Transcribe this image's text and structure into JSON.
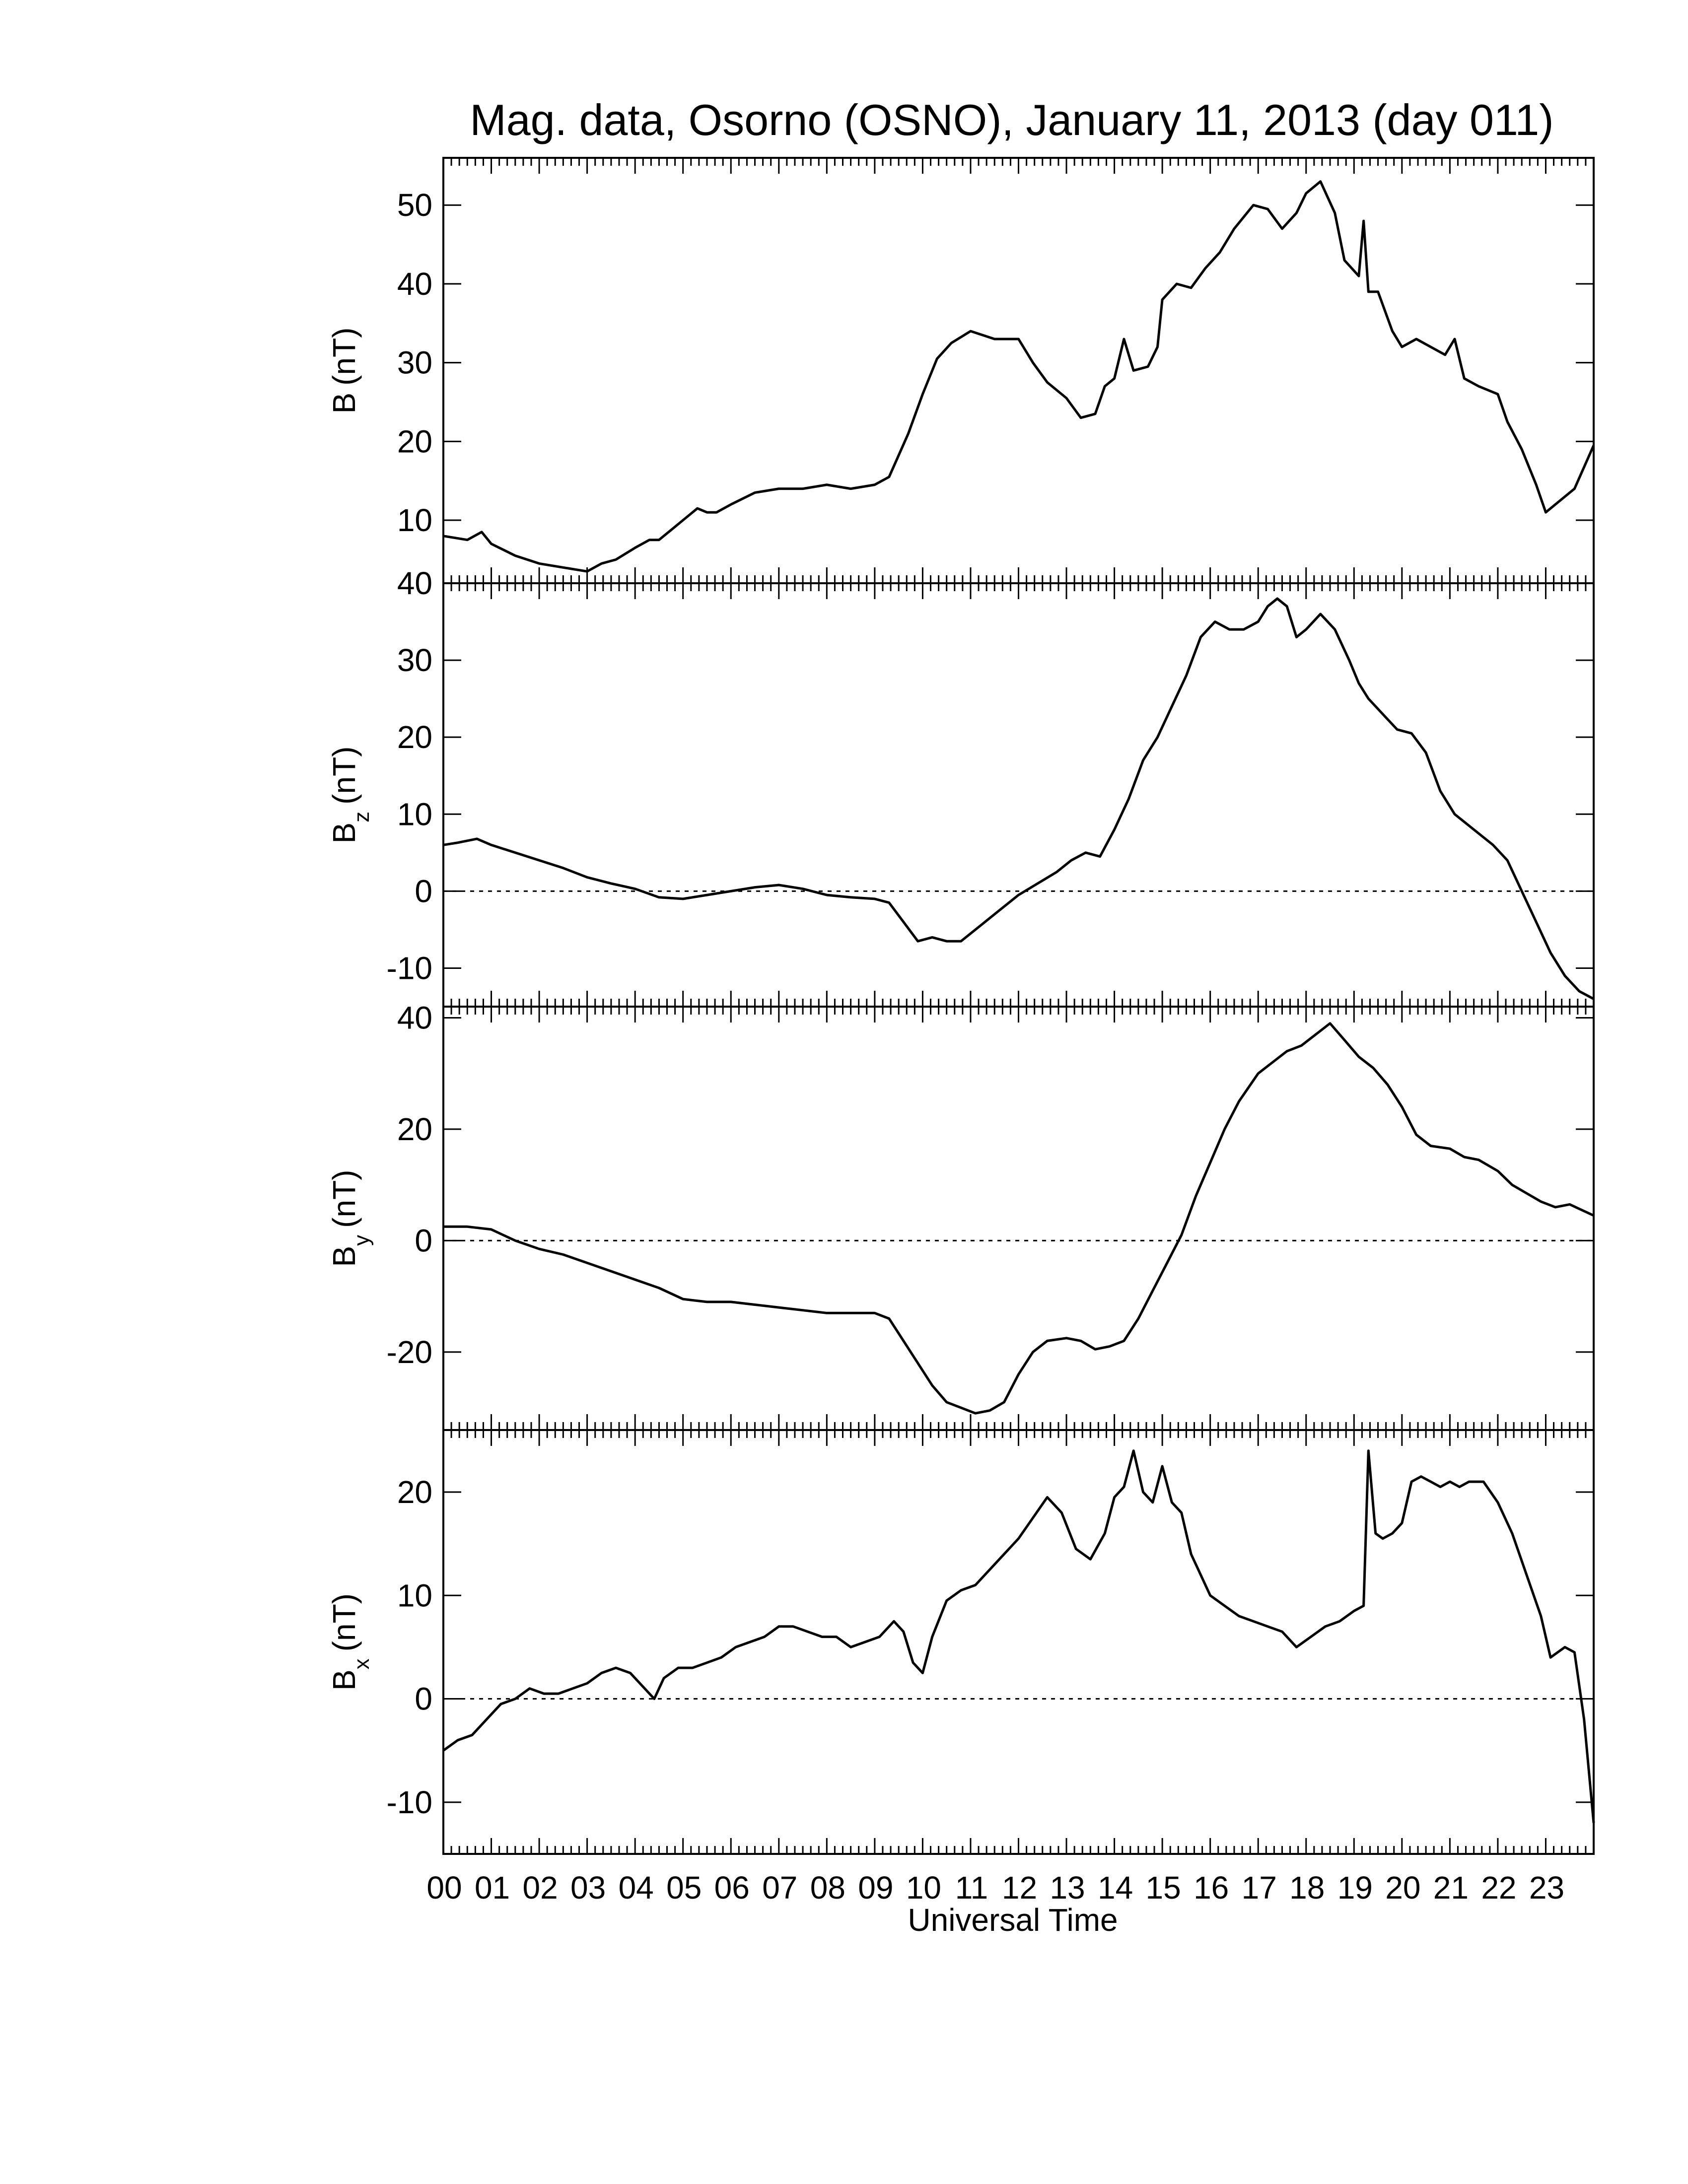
{
  "figure": {
    "title": "Mag. data, Osorno (OSNO), January 11, 2013 (day 011)",
    "xlabel": "Universal Time"
  },
  "colors": {
    "line": "#000000",
    "background": "#ffffff"
  },
  "chart_data": [
    {
      "type": "line",
      "label_main": "B",
      "label_sub": "",
      "label_unit": "(nT)",
      "ylim": [
        2,
        56
      ],
      "yticks": [
        10,
        20,
        30,
        40,
        50
      ],
      "ytick_labels": [
        "10",
        "20",
        "30",
        "40",
        "50"
      ],
      "zero_line": false,
      "xlim": [
        0,
        24
      ],
      "xticks": [
        0,
        1,
        2,
        3,
        4,
        5,
        6,
        7,
        8,
        9,
        10,
        11,
        12,
        13,
        14,
        15,
        16,
        17,
        18,
        19,
        20,
        21,
        22,
        23
      ],
      "xtick_labels": [
        "00",
        "01",
        "02",
        "03",
        "04",
        "05",
        "06",
        "07",
        "08",
        "09",
        "10",
        "11",
        "12",
        "13",
        "14",
        "15",
        "16",
        "17",
        "18",
        "19",
        "20",
        "21",
        "22",
        "23"
      ],
      "series": [
        {
          "x": [
            0,
            0.5,
            0.8,
            1,
            1.5,
            2,
            2.5,
            3,
            3.3,
            3.6,
            4,
            4.3,
            4.5,
            4.8,
            5,
            5.3,
            5.5,
            5.7,
            6,
            6.5,
            7,
            7.5,
            8,
            8.5,
            9,
            9.3,
            9.7,
            10,
            10.3,
            10.6,
            11,
            11.5,
            12,
            12.3,
            12.6,
            13,
            13.3,
            13.6,
            13.8,
            14,
            14.2,
            14.4,
            14.7,
            14.9,
            15,
            15.3,
            15.6,
            15.9,
            16.2,
            16.5,
            16.9,
            17.2,
            17.5,
            17.8,
            18,
            18.3,
            18.6,
            18.8,
            19.1,
            19.2,
            19.3,
            19.5,
            19.8,
            20,
            20.3,
            20.6,
            20.9,
            21.1,
            21.3,
            21.6,
            22,
            22.2,
            22.5,
            22.8,
            23,
            23.3,
            23.6,
            24
          ],
          "y": [
            8,
            7.5,
            8.5,
            7,
            5.5,
            4.5,
            4,
            3.5,
            4.5,
            5,
            6.5,
            7.5,
            7.5,
            9,
            10,
            11.5,
            11,
            11,
            12,
            13.5,
            14,
            14,
            14.5,
            14,
            14.5,
            15.5,
            21,
            26,
            30.5,
            32.5,
            34,
            33,
            33,
            30,
            27.5,
            25.5,
            23,
            23.5,
            27,
            28,
            33,
            29,
            29.5,
            32,
            38,
            40,
            39.5,
            42,
            44,
            47,
            50,
            49.5,
            47,
            49,
            51.5,
            53,
            49,
            43,
            41,
            48,
            39,
            39,
            34,
            32,
            33,
            32,
            31,
            33,
            28,
            27,
            26,
            22.5,
            19,
            14.5,
            11,
            12.5,
            14,
            19.5
          ]
        }
      ]
    },
    {
      "type": "line",
      "label_main": "B",
      "label_sub": "z",
      "label_unit": "(nT)",
      "ylim": [
        -15,
        40
      ],
      "yticks": [
        -10,
        0,
        10,
        20,
        30,
        40
      ],
      "ytick_labels": [
        "-10",
        "0",
        "10",
        "20",
        "30",
        "40"
      ],
      "zero_line": true,
      "xlim": [
        0,
        24
      ],
      "xticks": [
        0,
        1,
        2,
        3,
        4,
        5,
        6,
        7,
        8,
        9,
        10,
        11,
        12,
        13,
        14,
        15,
        16,
        17,
        18,
        19,
        20,
        21,
        22,
        23
      ],
      "xtick_labels": [
        "00",
        "01",
        "02",
        "03",
        "04",
        "05",
        "06",
        "07",
        "08",
        "09",
        "10",
        "11",
        "12",
        "13",
        "14",
        "15",
        "16",
        "17",
        "18",
        "19",
        "20",
        "21",
        "22",
        "23"
      ],
      "series": [
        {
          "x": [
            0,
            0.3,
            0.7,
            1,
            1.5,
            2,
            2.5,
            3,
            3.5,
            4,
            4.5,
            5,
            5.5,
            6,
            6.5,
            7,
            7.5,
            8,
            8.5,
            9,
            9.3,
            9.6,
            9.9,
            10.2,
            10.5,
            10.8,
            11.2,
            11.6,
            12,
            12.4,
            12.8,
            13.1,
            13.4,
            13.7,
            14,
            14.3,
            14.6,
            14.9,
            15.2,
            15.5,
            15.8,
            16.1,
            16.4,
            16.7,
            17,
            17.2,
            17.4,
            17.6,
            17.8,
            18,
            18.3,
            18.6,
            18.9,
            19.1,
            19.3,
            19.6,
            19.9,
            20.2,
            20.5,
            20.8,
            21.1,
            21.5,
            21.9,
            22.2,
            22.5,
            22.8,
            23.1,
            23.4,
            23.7,
            24
          ],
          "y": [
            6,
            6.3,
            6.8,
            6,
            5,
            4,
            3,
            1.8,
            1,
            0.3,
            -0.8,
            -1,
            -0.5,
            0,
            0.5,
            0.8,
            0.3,
            -0.5,
            -0.8,
            -1,
            -1.5,
            -4,
            -6.5,
            -6,
            -6.5,
            -6.5,
            -4.5,
            -2.5,
            -0.5,
            1,
            2.5,
            4,
            5,
            4.5,
            8,
            12,
            17,
            20,
            24,
            28,
            33,
            35,
            34,
            34,
            35,
            37,
            38,
            37,
            33,
            34,
            36,
            34,
            30,
            27,
            25,
            23,
            21,
            20.5,
            18,
            13,
            10,
            8,
            6,
            4,
            0,
            -4,
            -8,
            -11,
            -13,
            -14
          ]
        }
      ]
    },
    {
      "type": "line",
      "label_main": "B",
      "label_sub": "y",
      "label_unit": "(nT)",
      "ylim": [
        -34,
        42
      ],
      "yticks": [
        -20,
        0,
        20,
        40
      ],
      "ytick_labels": [
        "-20",
        "0",
        "20",
        "40"
      ],
      "zero_line": true,
      "xlim": [
        0,
        24
      ],
      "xticks": [
        0,
        1,
        2,
        3,
        4,
        5,
        6,
        7,
        8,
        9,
        10,
        11,
        12,
        13,
        14,
        15,
        16,
        17,
        18,
        19,
        20,
        21,
        22,
        23
      ],
      "xtick_labels": [
        "00",
        "01",
        "02",
        "03",
        "04",
        "05",
        "06",
        "07",
        "08",
        "09",
        "10",
        "11",
        "12",
        "13",
        "14",
        "15",
        "16",
        "17",
        "18",
        "19",
        "20",
        "21",
        "22",
        "23"
      ],
      "series": [
        {
          "x": [
            0,
            0.5,
            1,
            1.5,
            2,
            2.5,
            3,
            3.5,
            4,
            4.5,
            5,
            5.5,
            6,
            6.5,
            7,
            7.5,
            8,
            8.5,
            9,
            9.3,
            9.6,
            9.9,
            10.2,
            10.5,
            10.8,
            11.1,
            11.4,
            11.7,
            12,
            12.3,
            12.6,
            13,
            13.3,
            13.6,
            13.9,
            14.2,
            14.5,
            14.8,
            15.1,
            15.4,
            15.7,
            16,
            16.3,
            16.6,
            17,
            17.3,
            17.6,
            17.9,
            18.2,
            18.5,
            18.8,
            19.1,
            19.4,
            19.7,
            20,
            20.3,
            20.6,
            21,
            21.3,
            21.6,
            22,
            22.3,
            22.6,
            22.9,
            23.2,
            23.5,
            24
          ],
          "y": [
            2.5,
            2.5,
            2,
            0,
            -1.5,
            -2.5,
            -4,
            -5.5,
            -7,
            -8.5,
            -10.5,
            -11,
            -11,
            -11.5,
            -12,
            -12.5,
            -13,
            -13,
            -13,
            -14,
            -18,
            -22,
            -26,
            -29,
            -30,
            -31,
            -30.5,
            -29,
            -24,
            -20,
            -18,
            -17.5,
            -18,
            -19.5,
            -19,
            -18,
            -14,
            -9,
            -4,
            1,
            8,
            14,
            20,
            25,
            30,
            32,
            34,
            35,
            37,
            39,
            36,
            33,
            31,
            28,
            24,
            19,
            17,
            16.5,
            15,
            14.5,
            12.5,
            10,
            8.5,
            7,
            6,
            6.5,
            4.5
          ]
        }
      ]
    },
    {
      "type": "line",
      "label_main": "B",
      "label_sub": "x",
      "label_unit": "(nT)",
      "ylim": [
        -15,
        26
      ],
      "yticks": [
        -10,
        0,
        10,
        20
      ],
      "ytick_labels": [
        "-10",
        "0",
        "10",
        "20"
      ],
      "zero_line": true,
      "xlim": [
        0,
        24
      ],
      "xticks": [
        0,
        1,
        2,
        3,
        4,
        5,
        6,
        7,
        8,
        9,
        10,
        11,
        12,
        13,
        14,
        15,
        16,
        17,
        18,
        19,
        20,
        21,
        22,
        23
      ],
      "xtick_labels": [
        "00",
        "01",
        "02",
        "03",
        "04",
        "05",
        "06",
        "07",
        "08",
        "09",
        "10",
        "11",
        "12",
        "13",
        "14",
        "15",
        "16",
        "17",
        "18",
        "19",
        "20",
        "21",
        "22",
        "23"
      ],
      "series": [
        {
          "x": [
            0,
            0.3,
            0.6,
            0.9,
            1.2,
            1.5,
            1.8,
            2.1,
            2.4,
            2.7,
            3,
            3.3,
            3.6,
            3.9,
            4.2,
            4.4,
            4.6,
            4.9,
            5.2,
            5.5,
            5.8,
            6.1,
            6.4,
            6.7,
            7,
            7.3,
            7.6,
            7.9,
            8.2,
            8.5,
            8.8,
            9.1,
            9.4,
            9.6,
            9.8,
            10,
            10.2,
            10.5,
            10.8,
            11.1,
            11.4,
            11.7,
            12,
            12.3,
            12.6,
            12.9,
            13.2,
            13.5,
            13.8,
            14,
            14.2,
            14.4,
            14.6,
            14.8,
            15,
            15.2,
            15.4,
            15.6,
            15.8,
            16,
            16.3,
            16.6,
            16.9,
            17.2,
            17.5,
            17.8,
            18.1,
            18.4,
            18.7,
            19,
            19.2,
            19.3,
            19.45,
            19.6,
            19.8,
            20,
            20.2,
            20.4,
            20.6,
            20.8,
            21,
            21.2,
            21.4,
            21.7,
            22,
            22.3,
            22.6,
            22.9,
            23.1,
            23.4,
            23.6,
            23.8,
            24
          ],
          "y": [
            -5,
            -4,
            -3.5,
            -2,
            -0.5,
            0,
            1,
            0.5,
            0.5,
            1,
            1.5,
            2.5,
            3,
            2.5,
            1,
            0,
            2,
            3,
            3,
            3.5,
            4,
            5,
            5.5,
            6,
            7,
            7,
            6.5,
            6,
            6,
            5,
            5.5,
            6,
            7.5,
            6.5,
            3.5,
            2.5,
            6,
            9.5,
            10.5,
            11,
            12.5,
            14,
            15.5,
            17.5,
            19.5,
            18,
            14.5,
            13.5,
            16,
            19.5,
            20.5,
            24,
            20,
            19,
            22.5,
            19,
            18,
            14,
            12,
            10,
            9,
            8,
            7.5,
            7,
            6.5,
            5,
            6,
            7,
            7.5,
            8.5,
            9,
            24,
            16,
            15.5,
            16,
            17,
            21,
            21.5,
            21,
            20.5,
            21,
            20.5,
            21,
            21,
            19,
            16,
            12,
            8,
            4,
            5,
            4.5,
            -2,
            -12
          ]
        }
      ]
    }
  ]
}
